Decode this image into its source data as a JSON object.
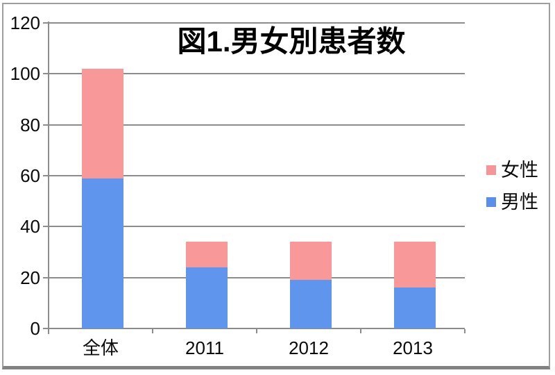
{
  "frame": {
    "border_color": "#9E9E9E",
    "bottom_edge_color": "#828282"
  },
  "chart_data": {
    "type": "bar",
    "stacked": true,
    "title": "図1.男女別患者数",
    "categories": [
      "全体",
      "2011",
      "2012",
      "2013"
    ],
    "series": [
      {
        "name": "男性",
        "color": "#6095EE",
        "values": [
          59,
          24,
          19,
          16
        ]
      },
      {
        "name": "女性",
        "color": "#F89899",
        "values": [
          43,
          10,
          15,
          18
        ]
      }
    ],
    "stack_totals": [
      102,
      34,
      34,
      34
    ],
    "xlabel": "",
    "ylabel": "",
    "ylim": [
      0,
      120
    ],
    "yticks": [
      0,
      20,
      40,
      60,
      80,
      100,
      120
    ],
    "grid": true,
    "gridline_color": "#8C8C8C",
    "axis_color": "#8C8C8C",
    "legend_position": "right",
    "legend": [
      {
        "label": "女性",
        "color": "#F69597"
      },
      {
        "label": "男性",
        "color": "#5B8DEB"
      }
    ]
  }
}
